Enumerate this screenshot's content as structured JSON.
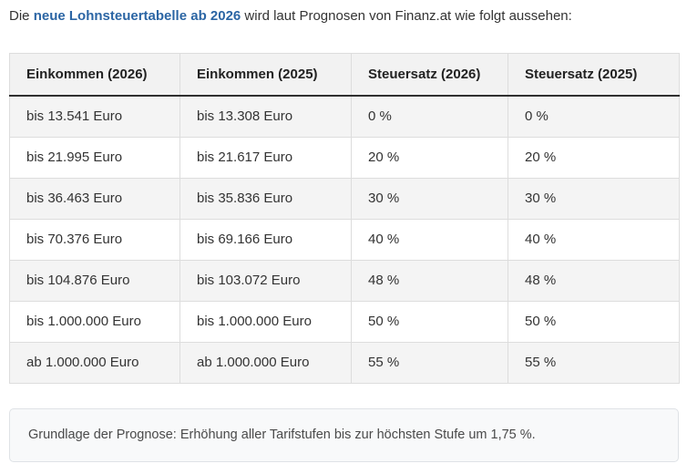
{
  "intro": {
    "prefix": "Die ",
    "link_text": "neue Lohnsteuertabelle ab 2026",
    "suffix": " wird laut Prognosen von Finanz.at wie folgt aussehen:"
  },
  "table": {
    "headers": [
      "Einkommen (2026)",
      "Einkommen (2025)",
      "Steuersatz (2026)",
      "Steuersatz (2025)"
    ],
    "rows": [
      [
        "bis 13.541 Euro",
        "bis 13.308 Euro",
        "0 %",
        "0 %"
      ],
      [
        "bis 21.995 Euro",
        "bis 21.617 Euro",
        "20 %",
        "20 %"
      ],
      [
        "bis 36.463 Euro",
        "bis 35.836 Euro",
        "30 %",
        "30 %"
      ],
      [
        "bis 70.376 Euro",
        "bis 69.166 Euro",
        "40 %",
        "40 %"
      ],
      [
        "bis 104.876 Euro",
        "bis 103.072 Euro",
        "48 %",
        "48 %"
      ],
      [
        "bis 1.000.000 Euro",
        "bis 1.000.000 Euro",
        "50 %",
        "50 %"
      ],
      [
        "ab 1.000.000 Euro",
        "ab 1.000.000 Euro",
        "55 %",
        "55 %"
      ]
    ]
  },
  "note": {
    "text": "Grundlage der Prognose: Erhöhung aller Tarifstufen bis zur höchsten Stufe um 1,75 %."
  },
  "colors": {
    "link_blue": "#2b65a4",
    "body_text": "#333333",
    "header_bg": "#f2f2f2",
    "row_alt_bg": "#f4f4f4",
    "cell_border": "#dddddd",
    "header_bottom_border": "#2f2f2f",
    "note_bg": "#f8f9fa",
    "note_border": "#dfe2e6"
  }
}
